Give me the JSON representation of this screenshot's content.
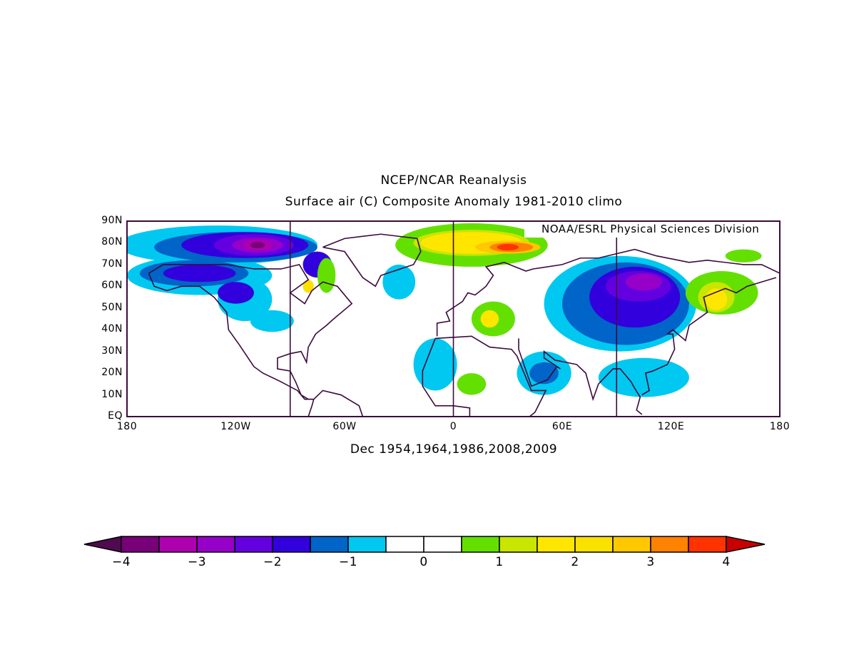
{
  "chart_data": {
    "type": "heatmap",
    "title": "NCEP/NCAR Reanalysis",
    "subtitle": "Surface air (C) Composite Anomaly 1981-2010 climo",
    "xlabel": "Dec 1954,1964,1986,2008,2009",
    "credit": "NOAA/ESRL Physical Sciences Division",
    "lon_range": [
      -180,
      180
    ],
    "lat_range": [
      0,
      90
    ],
    "x_ticks": [
      {
        "v": -180,
        "label": "180"
      },
      {
        "v": -120,
        "label": "120W"
      },
      {
        "v": -60,
        "label": "60W"
      },
      {
        "v": 0,
        "label": "0"
      },
      {
        "v": 60,
        "label": "60E"
      },
      {
        "v": 120,
        "label": "120E"
      },
      {
        "v": 180,
        "label": "180"
      }
    ],
    "y_ticks": [
      {
        "v": 0,
        "label": "EQ"
      },
      {
        "v": 10,
        "label": "10N"
      },
      {
        "v": 20,
        "label": "20N"
      },
      {
        "v": 30,
        "label": "30N"
      },
      {
        "v": 40,
        "label": "40N"
      },
      {
        "v": 50,
        "label": "50N"
      },
      {
        "v": 60,
        "label": "60N"
      },
      {
        "v": 70,
        "label": "70N"
      },
      {
        "v": 80,
        "label": "80N"
      },
      {
        "v": 90,
        "label": "90N"
      }
    ],
    "meridians": [
      -90,
      0,
      90
    ],
    "colorbar": {
      "levels": [
        -4,
        -3.5,
        -3,
        -2.5,
        -2,
        -1.5,
        -1,
        -0.5,
        0,
        0.5,
        1,
        1.5,
        2,
        2.5,
        3,
        3.5,
        4
      ],
      "colors": [
        "#500a50",
        "#780078",
        "#ae00ae",
        "#9600c8",
        "#6400e0",
        "#3200dc",
        "#0064c8",
        "#00c8f0",
        "#ffffff",
        "#ffffff",
        "#64e000",
        "#c8e600",
        "#ffe600",
        "#fae100",
        "#ffc800",
        "#ff8200",
        "#ff3200",
        "#c80000"
      ],
      "tick_labels": [
        {
          "v": -4,
          "label": "-4"
        },
        {
          "v": -3,
          "label": "-3"
        },
        {
          "v": -2,
          "label": "-2"
        },
        {
          "v": -1,
          "label": "-1"
        },
        {
          "v": 0,
          "label": "0"
        },
        {
          "v": 1,
          "label": "1"
        },
        {
          "v": 2,
          "label": "2"
        },
        {
          "v": 3,
          "label": "3"
        },
        {
          "v": 4,
          "label": "4"
        }
      ]
    },
    "anomaly_regions": [
      {
        "lon": -130,
        "lat": 79,
        "rlon": 55,
        "rlat": 9,
        "value": -0.8
      },
      {
        "lon": -140,
        "lat": 65,
        "rlon": 40,
        "rlat": 9,
        "value": -0.8
      },
      {
        "lon": -115,
        "lat": 54,
        "rlon": 15,
        "rlat": 10,
        "value": -0.8
      },
      {
        "lon": -100,
        "lat": 44,
        "rlon": 12,
        "rlat": 5,
        "value": -0.8
      },
      {
        "lon": -30,
        "lat": 62,
        "rlon": 9,
        "rlat": 8,
        "value": -0.8
      },
      {
        "lon": 92,
        "lat": 52,
        "rlon": 42,
        "rlat": 22,
        "value": -0.8
      },
      {
        "lon": 50,
        "lat": 20,
        "rlon": 15,
        "rlat": 10,
        "value": -0.8
      },
      {
        "lon": -10,
        "lat": 24,
        "rlon": 12,
        "rlat": 12,
        "value": -0.8
      },
      {
        "lon": 105,
        "lat": 18,
        "rlon": 25,
        "rlat": 9,
        "value": -0.8
      },
      {
        "lon": -120,
        "lat": 78,
        "rlon": 45,
        "rlat": 7,
        "value": -1.3
      },
      {
        "lon": -143,
        "lat": 66,
        "rlon": 30,
        "rlat": 6,
        "value": -1.3
      },
      {
        "lon": 95,
        "lat": 52,
        "rlon": 35,
        "rlat": 19,
        "value": -1.3
      },
      {
        "lon": 50,
        "lat": 20,
        "rlon": 8,
        "rlat": 5,
        "value": -1.3
      },
      {
        "lon": -115,
        "lat": 79,
        "rlon": 35,
        "rlat": 6,
        "value": -1.8
      },
      {
        "lon": -140,
        "lat": 66,
        "rlon": 20,
        "rlat": 4,
        "value": -1.8
      },
      {
        "lon": -120,
        "lat": 57,
        "rlon": 10,
        "rlat": 5,
        "value": -1.8
      },
      {
        "lon": -75,
        "lat": 70,
        "rlon": 8,
        "rlat": 6,
        "value": -1.8
      },
      {
        "lon": 100,
        "lat": 55,
        "rlon": 25,
        "rlat": 14,
        "value": -1.8
      },
      {
        "lon": -110,
        "lat": 79,
        "rlon": 22,
        "rlat": 5,
        "value": -2.3
      },
      {
        "lon": 102,
        "lat": 60,
        "rlon": 18,
        "rlat": 7,
        "value": -2.3
      },
      {
        "lon": -108,
        "lat": 79,
        "rlon": 14,
        "rlat": 3.5,
        "value": -2.8
      },
      {
        "lon": 105,
        "lat": 62,
        "rlon": 10,
        "rlat": 4,
        "value": -2.8
      },
      {
        "lon": -108,
        "lat": 79,
        "rlon": 8,
        "rlat": 2.5,
        "value": -3.3
      },
      {
        "lon": -108,
        "lat": 79,
        "rlon": 4,
        "rlat": 1.5,
        "value": -3.8
      },
      {
        "lon": 10,
        "lat": 79,
        "rlon": 42,
        "rlat": 10,
        "value": 0.8
      },
      {
        "lon": 148,
        "lat": 57,
        "rlon": 20,
        "rlat": 10,
        "value": 0.8
      },
      {
        "lon": 22,
        "lat": 45,
        "rlon": 12,
        "rlat": 8,
        "value": 0.8
      },
      {
        "lon": -70,
        "lat": 65,
        "rlon": 5,
        "rlat": 8,
        "value": 0.8
      },
      {
        "lon": 10,
        "lat": 15,
        "rlon": 8,
        "rlat": 5,
        "value": 0.8
      },
      {
        "lon": 160,
        "lat": 74,
        "rlon": 10,
        "rlat": 3,
        "value": 0.8
      },
      {
        "lon": 10,
        "lat": 80,
        "rlon": 32,
        "rlat": 6,
        "value": 1.3
      },
      {
        "lon": 145,
        "lat": 55,
        "rlon": 10,
        "rlat": 7,
        "value": 1.3
      },
      {
        "lon": 10,
        "lat": 80,
        "rlon": 28,
        "rlat": 5,
        "value": 1.8
      },
      {
        "lon": 145,
        "lat": 54,
        "rlon": 6,
        "rlat": 5,
        "value": 1.8
      },
      {
        "lon": 20,
        "lat": 45,
        "rlon": 5,
        "rlat": 4,
        "value": 1.8
      },
      {
        "lon": -80,
        "lat": 60,
        "rlon": 3,
        "rlat": 3,
        "value": 2.3
      },
      {
        "lon": 30,
        "lat": 78,
        "rlon": 18,
        "rlat": 3,
        "value": 2.8
      },
      {
        "lon": 32,
        "lat": 78,
        "rlon": 12,
        "rlat": 2.2,
        "value": 3.3
      },
      {
        "lon": 30,
        "lat": 78,
        "rlon": 6,
        "rlat": 1.5,
        "value": 3.8
      }
    ],
    "coastlines": [
      [
        [
          -168,
          66
        ],
        [
          -160,
          70
        ],
        [
          -140,
          70
        ],
        [
          -125,
          70
        ],
        [
          -110,
          68
        ],
        [
          -95,
          68
        ],
        [
          -85,
          70
        ],
        [
          -80,
          63
        ],
        [
          -90,
          57
        ],
        [
          -82,
          52
        ],
        [
          -78,
          58
        ],
        [
          -72,
          62
        ],
        [
          -64,
          60
        ],
        [
          -56,
          52
        ],
        [
          -66,
          45
        ],
        [
          -70,
          42
        ],
        [
          -76,
          38
        ],
        [
          -80,
          32
        ],
        [
          -81,
          25
        ],
        [
          -84,
          30
        ],
        [
          -90,
          29
        ],
        [
          -97,
          27
        ],
        [
          -97,
          22
        ],
        [
          -90,
          21
        ],
        [
          -87,
          16
        ],
        [
          -84,
          10
        ],
        [
          -80,
          8
        ],
        [
          -77,
          8
        ]
      ],
      [
        [
          -168,
          66
        ],
        [
          -165,
          60
        ],
        [
          -158,
          58
        ],
        [
          -150,
          60
        ],
        [
          -140,
          60
        ],
        [
          -132,
          55
        ],
        [
          -125,
          48
        ],
        [
          -124,
          40
        ],
        [
          -118,
          33
        ],
        [
          -110,
          23
        ],
        [
          -105,
          20
        ],
        [
          -95,
          16
        ],
        [
          -86,
          12
        ],
        [
          -82,
          8
        ],
        [
          -78,
          8
        ]
      ],
      [
        [
          -77,
          8
        ],
        [
          -72,
          12
        ],
        [
          -62,
          10
        ],
        [
          -52,
          5
        ],
        [
          -50,
          0
        ]
      ],
      [
        [
          -80,
          0
        ],
        [
          -78,
          5
        ],
        [
          -77,
          8
        ]
      ],
      [
        [
          -72,
          78
        ],
        [
          -60,
          82
        ],
        [
          -40,
          84
        ],
        [
          -20,
          82
        ],
        [
          -18,
          76
        ],
        [
          -22,
          70
        ],
        [
          -40,
          65
        ],
        [
          -43,
          60
        ],
        [
          -50,
          64
        ],
        [
          -55,
          70
        ],
        [
          -60,
          76
        ],
        [
          -72,
          78
        ]
      ],
      [
        [
          -10,
          36
        ],
        [
          -17,
          21
        ],
        [
          -17,
          14
        ],
        [
          -10,
          5
        ],
        [
          0,
          5
        ],
        [
          9,
          4
        ],
        [
          9,
          0
        ]
      ],
      [
        [
          -10,
          36
        ],
        [
          10,
          37
        ],
        [
          20,
          32
        ],
        [
          32,
          31
        ],
        [
          35,
          28
        ],
        [
          43,
          12
        ],
        [
          51,
          12
        ],
        [
          45,
          2
        ],
        [
          42,
          0
        ]
      ],
      [
        [
          -9,
          37
        ],
        [
          -9,
          43
        ],
        [
          -2,
          44
        ],
        [
          -4,
          48
        ],
        [
          5,
          53
        ],
        [
          8,
          57
        ],
        [
          12,
          56
        ],
        [
          18,
          60
        ],
        [
          22,
          65
        ],
        [
          18,
          69
        ],
        [
          28,
          71
        ],
        [
          40,
          67
        ],
        [
          44,
          68
        ],
        [
          60,
          70
        ],
        [
          70,
          73
        ],
        [
          80,
          73
        ],
        [
          100,
          77
        ],
        [
          112,
          74
        ],
        [
          130,
          71
        ],
        [
          140,
          72
        ],
        [
          160,
          70
        ],
        [
          170,
          70
        ],
        [
          180,
          66
        ]
      ],
      [
        [
          36,
          36
        ],
        [
          36,
          31
        ],
        [
          43,
          14
        ],
        [
          52,
          17
        ],
        [
          57,
          23
        ],
        [
          59,
          22
        ],
        [
          50,
          27
        ],
        [
          50,
          30
        ],
        [
          56,
          26
        ],
        [
          62,
          25
        ],
        [
          68,
          24
        ],
        [
          73,
          20
        ],
        [
          77,
          8
        ],
        [
          80,
          15
        ],
        [
          88,
          22
        ],
        [
          92,
          22
        ],
        [
          98,
          16
        ],
        [
          100,
          13
        ],
        [
          103,
          9
        ],
        [
          101,
          3
        ],
        [
          104,
          1
        ]
      ],
      [
        [
          104,
          10
        ],
        [
          108,
          12
        ],
        [
          106,
          20
        ],
        [
          110,
          21
        ],
        [
          118,
          24
        ],
        [
          122,
          31
        ],
        [
          121,
          38
        ],
        [
          118,
          38
        ],
        [
          121,
          40
        ],
        [
          128,
          35
        ],
        [
          130,
          42
        ],
        [
          140,
          48
        ],
        [
          138,
          55
        ],
        [
          150,
          59
        ],
        [
          156,
          57
        ],
        [
          162,
          60
        ],
        [
          178,
          64
        ]
      ]
    ]
  }
}
